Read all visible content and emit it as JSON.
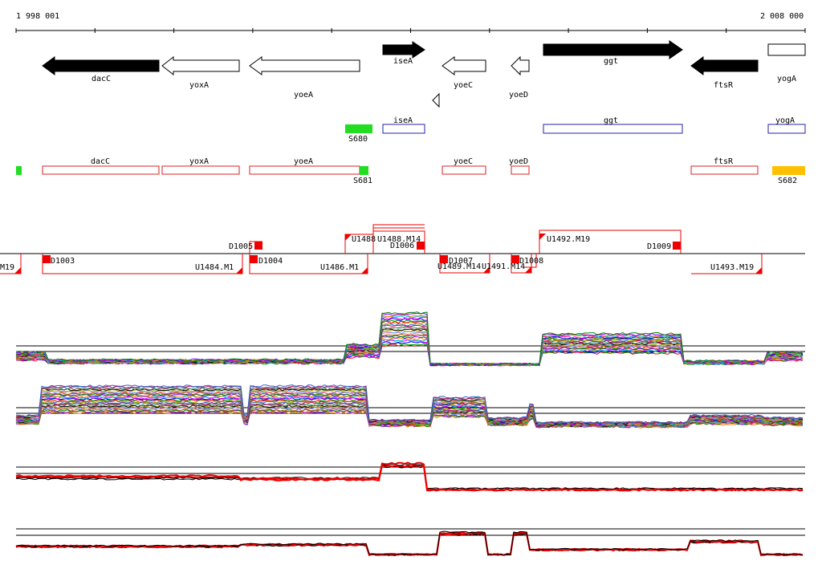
{
  "ruler": {
    "start_label": "1 998 001",
    "end_label": "2 008 000"
  },
  "genes": [
    {
      "name": "dacC",
      "strand": "-",
      "fill": "#000000"
    },
    {
      "name": "yoxA",
      "strand": "-",
      "fill": "#ffffff"
    },
    {
      "name": "yoeA",
      "strand": "-",
      "fill": "#ffffff"
    },
    {
      "name": "iseA",
      "strand": "+",
      "fill": "#000000"
    },
    {
      "name": "yoeC",
      "strand": "-",
      "fill": "#ffffff"
    },
    {
      "name": "yoeD",
      "strand": "-",
      "fill": "#ffffff"
    },
    {
      "name": "ggt",
      "strand": "+",
      "fill": "#000000"
    },
    {
      "name": "ftsR",
      "strand": "-",
      "fill": "#000000"
    },
    {
      "name": "yogA",
      "strand": "+",
      "fill": "#ffffff"
    }
  ],
  "plus_features": [
    {
      "name": "iseA",
      "color": "#2222aa"
    },
    {
      "name": "ggt",
      "color": "#2222aa"
    },
    {
      "name": "yogA",
      "color": "#2222aa"
    }
  ],
  "minus_features": [
    {
      "name": "dacC",
      "color": "#dd2222"
    },
    {
      "name": "yoxA",
      "color": "#dd2222"
    },
    {
      "name": "yoeA",
      "color": "#dd2222"
    },
    {
      "name": "yoeC",
      "color": "#dd2222"
    },
    {
      "name": "yoeD",
      "color": "#dd2222"
    },
    {
      "name": "ftsR",
      "color": "#dd2222"
    }
  ],
  "sites": [
    {
      "name": "S680",
      "color": "#22dd22"
    },
    {
      "name": "S681",
      "color": "#22dd22"
    },
    {
      "name": "S682",
      "color": "#ffc000"
    }
  ],
  "segments_upper": [
    {
      "name": "D1005"
    },
    {
      "name": "U1488"
    },
    {
      "name": "U1488.M14"
    },
    {
      "name": "D1006"
    },
    {
      "name": "U1492.M19"
    },
    {
      "name": "D1009"
    }
  ],
  "segments_lower": [
    {
      "name": "M19"
    },
    {
      "name": "D1003"
    },
    {
      "name": "U1484.M1"
    },
    {
      "name": "D1004"
    },
    {
      "name": "U1486.M1"
    },
    {
      "name": "D1007"
    },
    {
      "name": "U1489.M14"
    },
    {
      "name": "U1491.M14"
    },
    {
      "name": "D1008"
    },
    {
      "name": "U1493.M19"
    }
  ],
  "colors": {
    "black": "#000000",
    "red": "#ee0000",
    "blue_feature": "#2222aa",
    "red_feature": "#dd2222",
    "green_site": "#22dd22",
    "orange_site": "#ffc000"
  }
}
